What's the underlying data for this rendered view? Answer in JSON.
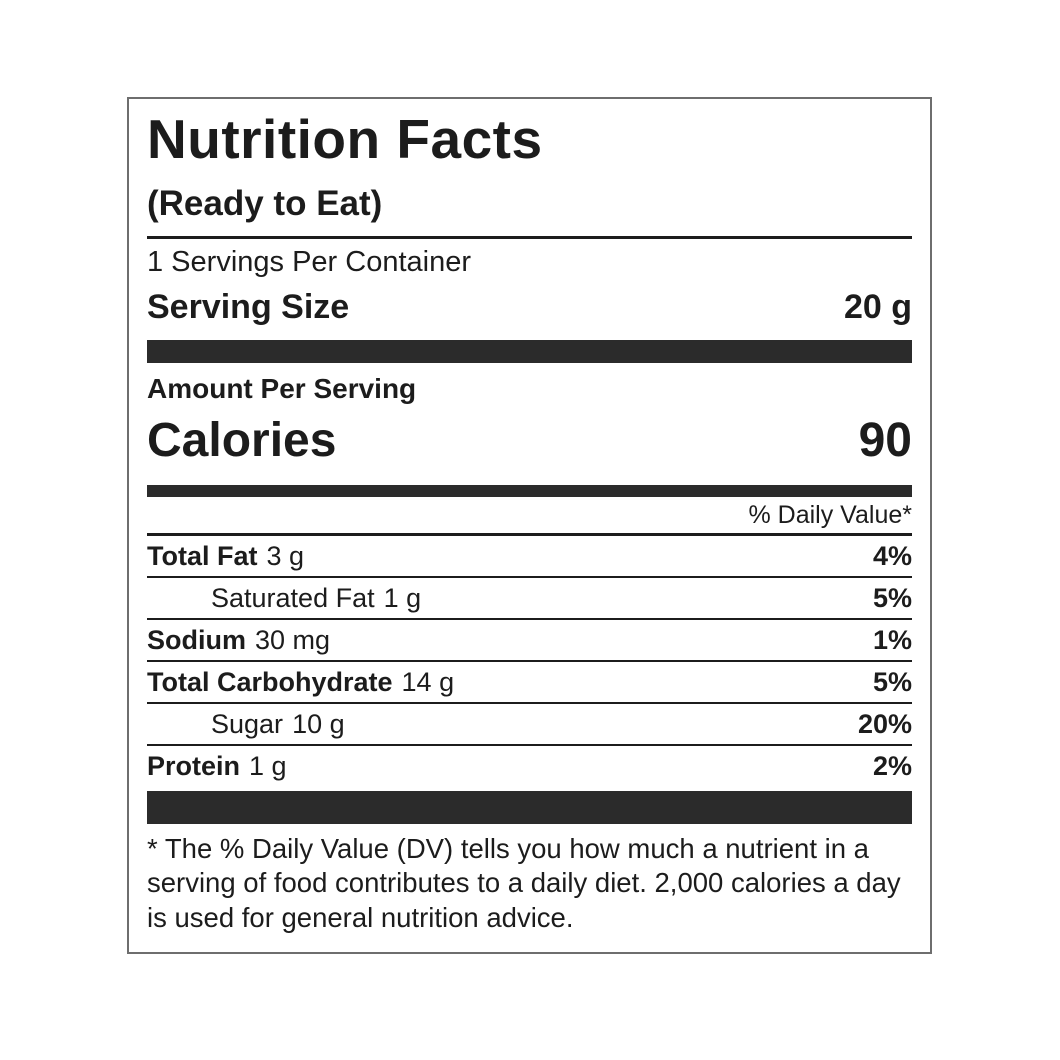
{
  "label": {
    "title": "Nutrition Facts",
    "subtitle": "(Ready to Eat)",
    "servings_per_container": "1 Servings Per Container",
    "serving_size": {
      "label": "Serving Size",
      "value": "20 g"
    },
    "amount_per_serving": "Amount Per Serving",
    "calories": {
      "label": "Calories",
      "value": "90"
    },
    "daily_value_header": "% Daily Value*",
    "nutrients": [
      {
        "name": "Total Fat",
        "amount": "3 g",
        "dv": "4%"
      },
      {
        "name": "Saturated Fat",
        "amount": "1 g",
        "dv": "5%"
      },
      {
        "name": "Sodium",
        "amount": "30 mg",
        "dv": "1%"
      },
      {
        "name": "Total Carbohydrate",
        "amount": "14 g",
        "dv": "5%"
      },
      {
        "name": "Sugar",
        "amount": "10 g",
        "dv": "20%"
      },
      {
        "name": "Protein",
        "amount": "1 g",
        "dv": "2%"
      }
    ],
    "footnote": "* The % Daily Value (DV) tells you how much a nutrient in a serving of food contributes to a daily diet. 2,000 calories a day is used for general nutrition advice.",
    "colors": {
      "text": "#1c1c1c",
      "separator_bar": "#2b2b2b",
      "border": "#6e6e6e",
      "background": "#ffffff"
    }
  }
}
